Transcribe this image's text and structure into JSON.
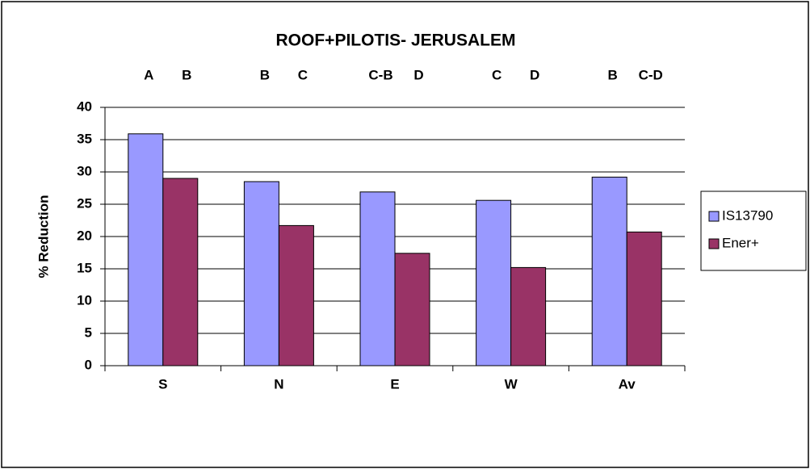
{
  "chart_data": {
    "type": "bar",
    "title": "ROOF+PILOTIS- JERUSALEM",
    "y_label": "% Reduction",
    "categories": [
      "S",
      "N",
      "E",
      "W",
      "Av"
    ],
    "series": [
      {
        "name": "IS13790",
        "color": "#9999ff",
        "values": [
          35.9,
          28.5,
          26.9,
          25.6,
          29.2
        ],
        "annotations": [
          "A",
          "B",
          "C-B",
          "C",
          "B"
        ]
      },
      {
        "name": "Ener+",
        "color": "#993366",
        "values": [
          29,
          21.7,
          17.4,
          15.2,
          20.7
        ],
        "annotations": [
          "B",
          "C",
          "D",
          "D",
          "C-D"
        ]
      }
    ],
    "ylim": [
      0,
      40
    ],
    "yticks": [
      0,
      5,
      10,
      15,
      20,
      25,
      30,
      35,
      40
    ],
    "grid": true,
    "legend": "right"
  }
}
